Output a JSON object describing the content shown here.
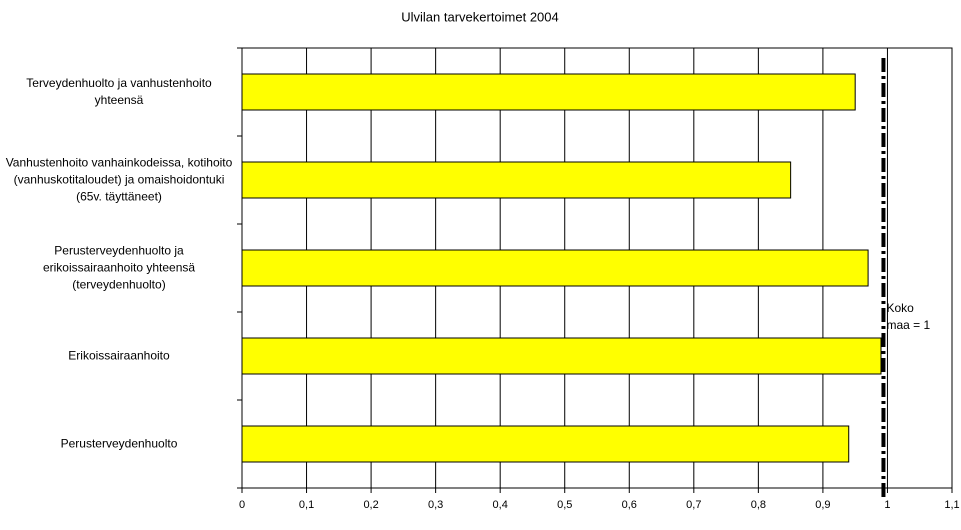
{
  "chart_data": {
    "type": "barh",
    "title": "Ulvilan tarvekertoimet 2004",
    "categories": [
      "Terveydenhuolto ja vanhustenhoito yhteensä",
      "Vanhustenhoito vanhainkodeissa, kotihoito (vanhuskotitaloudet) ja omaishoidontuki (65v. täyttäneet)",
      "Perusterveydenhuolto ja erikoissairaanhoito yhteensä (terveydenhuolto)",
      "Erikoissairaanhoito",
      "Perusterveydenhuolto"
    ],
    "values": [
      0.95,
      0.85,
      0.97,
      0.99,
      0.94
    ],
    "color": "#ffff00",
    "xlim": [
      0,
      1.1
    ],
    "xticks": [
      0,
      {
        "value": 0.1,
        "label": "0,1"
      },
      {
        "value": 0.2,
        "label": "0,2"
      },
      {
        "value": 0.3,
        "label": "0,3"
      },
      {
        "value": 0.4,
        "label": "0,4"
      },
      {
        "value": 0.5,
        "label": "0,5"
      },
      {
        "value": 0.6,
        "label": "0,6"
      },
      {
        "value": 0.7,
        "label": "0,7"
      },
      {
        "value": 0.8,
        "label": "0,8"
      },
      {
        "value": 0.9,
        "label": "0,9"
      },
      1,
      {
        "value": 1.1,
        "label": "1,1"
      }
    ],
    "grid": true,
    "reference_line": {
      "value": 1,
      "label": "Koko maa = 1"
    }
  }
}
